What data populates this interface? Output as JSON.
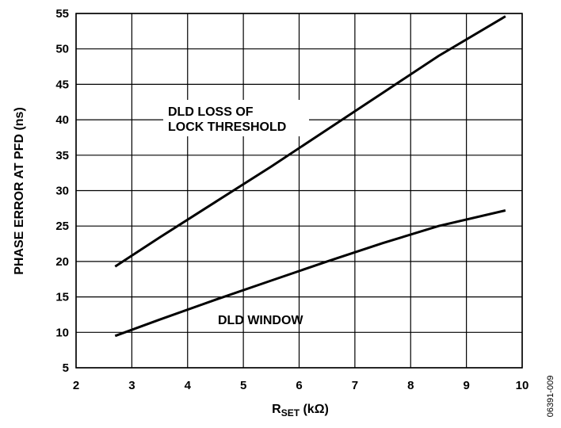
{
  "chart_data": {
    "type": "line",
    "xlabel_main": "R",
    "xlabel_sub": "SET",
    "xlabel_unit": " (kΩ)",
    "ylabel": "PHASE ERROR AT PFD (ns)",
    "xlim": [
      2,
      10
    ],
    "ylim": [
      5,
      55
    ],
    "xticks": [
      2,
      3,
      4,
      5,
      6,
      7,
      8,
      9,
      10
    ],
    "yticks": [
      5,
      10,
      15,
      20,
      25,
      30,
      35,
      40,
      45,
      50,
      55
    ],
    "grid": true,
    "series": [
      {
        "name": "DLD LOSS OF LOCK THRESHOLD",
        "x": [
          2.7,
          3.5,
          4.5,
          5.5,
          6.5,
          7.5,
          8.5,
          9.7
        ],
        "y": [
          19.3,
          23.4,
          28.4,
          33.4,
          38.6,
          43.8,
          49.0,
          54.6
        ]
      },
      {
        "name": "DLD WINDOW",
        "x": [
          2.7,
          3.5,
          4.5,
          5.5,
          6.5,
          7.5,
          8.5,
          9.7
        ],
        "y": [
          9.5,
          11.8,
          14.6,
          17.3,
          20.0,
          22.6,
          25.0,
          27.2
        ]
      }
    ],
    "annotations": [
      {
        "lines": [
          "DLD LOSS OF",
          "LOCK THRESHOLD"
        ],
        "series": 0
      },
      {
        "lines": [
          "DLD WINDOW"
        ],
        "series": 1
      }
    ],
    "figure_id": "06391-009"
  }
}
